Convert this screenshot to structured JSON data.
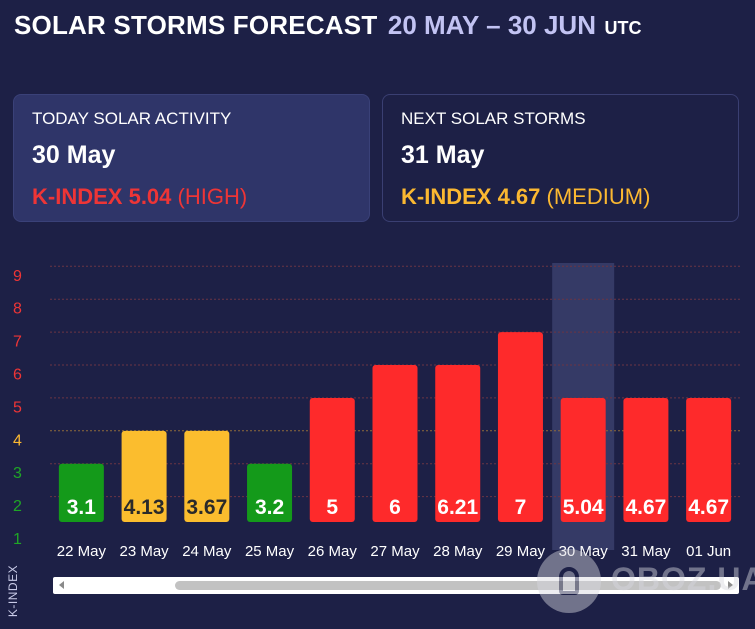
{
  "header": {
    "title": "SOLAR STORMS FORECAST",
    "range": "20 MAY – 30 JUN",
    "timezone": "UTC"
  },
  "today": {
    "label": "TODAY SOLAR ACTIVITY",
    "date": "30 May",
    "kindex_label": "K-INDEX",
    "kindex_value": "5.04",
    "level": "(HIGH)",
    "color": "#ee3536"
  },
  "next": {
    "label": "NEXT SOLAR STORMS",
    "date": "31 May",
    "kindex_label": "K-INDEX",
    "kindex_value": "4.67",
    "level": "(MEDIUM)",
    "color": "#fbb831"
  },
  "chart_data": {
    "type": "bar",
    "categories": [
      "22 May",
      "23 May",
      "24 May",
      "25 May",
      "26 May",
      "27 May",
      "28 May",
      "29 May",
      "30 May",
      "31 May",
      "01 Jun"
    ],
    "values": [
      3.1,
      4.13,
      3.67,
      3.2,
      5,
      6,
      6.21,
      7,
      5.04,
      4.67,
      4.67
    ],
    "bar_heights": [
      3.5,
      4.5,
      4.5,
      3.5,
      5.5,
      6.5,
      6.5,
      7.5,
      5.5,
      5.5,
      5.5
    ],
    "data_labels": [
      "3.1",
      "4.13",
      "3.67",
      "3.2",
      "5",
      "6",
      "6.21",
      "7",
      "5.04",
      "4.67",
      "4.67"
    ],
    "bar_colors": [
      "#149a1a",
      "#fbbd2e",
      "#fbbd2e",
      "#149a1a",
      "#fe2a2b",
      "#fe2a2b",
      "#fe2a2b",
      "#fe2a2b",
      "#fe2a2b",
      "#fe2a2b",
      "#fe2a2b"
    ],
    "highlighted_category": "30 May",
    "y_ticks": [
      "1",
      "2",
      "3",
      "4",
      "5",
      "6",
      "7",
      "8",
      "9"
    ],
    "y_tick_colors": [
      "#1fa626",
      "#1fa626",
      "#1fa626",
      "#fbb831",
      "#ee3536",
      "#ee3536",
      "#ee3536",
      "#ee3536",
      "#ee3536"
    ],
    "ylim": [
      1,
      9
    ],
    "ylabel": "K-INDEX",
    "xlabel": "",
    "grid": true
  },
  "scrollbar": {
    "left_arrow": "left-arrow-icon",
    "right_arrow": "right-arrow-icon"
  },
  "watermark": {
    "text": "OBOZ.UA"
  }
}
